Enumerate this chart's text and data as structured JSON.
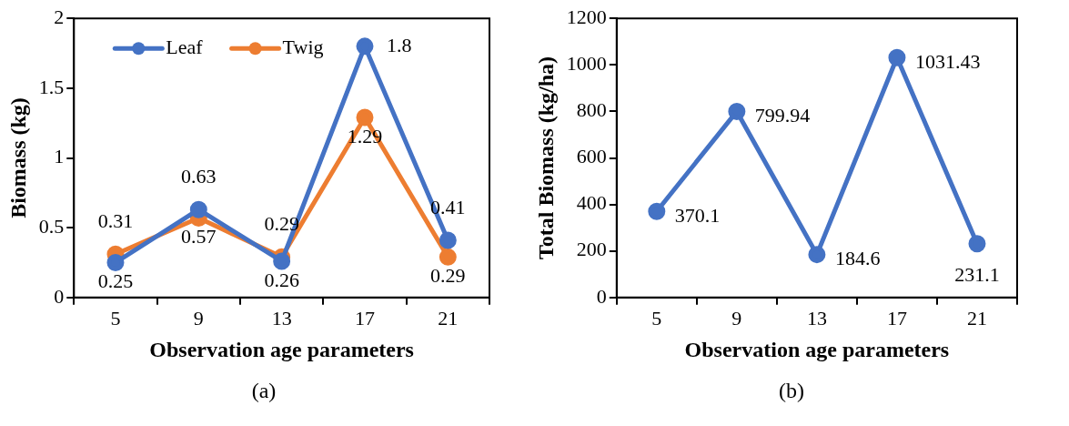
{
  "chart_data": [
    {
      "type": "line",
      "xlabel": "Observation age parameters",
      "ylabel": "Biomass (kg)",
      "categories": [
        "5",
        "9",
        "13",
        "17",
        "21"
      ],
      "series": [
        {
          "name": "Leaf",
          "color": "#4472c4",
          "values": [
            0.25,
            0.63,
            0.26,
            1.8,
            0.41
          ]
        },
        {
          "name": "Twig",
          "color": "#ed7d31",
          "values": [
            0.31,
            0.57,
            0.29,
            1.29,
            0.29
          ]
        }
      ],
      "ylim": [
        0,
        2
      ],
      "yticks": [
        0,
        0.5,
        1,
        1.5,
        2
      ],
      "grid": false,
      "legend": "top left",
      "marker": "circle",
      "data_labels": true,
      "annotations": [
        "(a)"
      ]
    },
    {
      "type": "line",
      "xlabel": "Observation age parameters",
      "ylabel": "Total Biomass (kg/ha)",
      "categories": [
        "5",
        "9",
        "13",
        "17",
        "21"
      ],
      "series": [
        {
          "color": "#4472c4",
          "values": [
            370.1,
            799.94,
            184.6,
            1031.43,
            231.1
          ]
        }
      ],
      "ylim": [
        0,
        1200
      ],
      "yticks": [
        0,
        200,
        400,
        600,
        800,
        1000,
        1200
      ],
      "grid": false,
      "marker": "circle",
      "data_labels": true,
      "annotations": [
        "(b)"
      ]
    }
  ]
}
